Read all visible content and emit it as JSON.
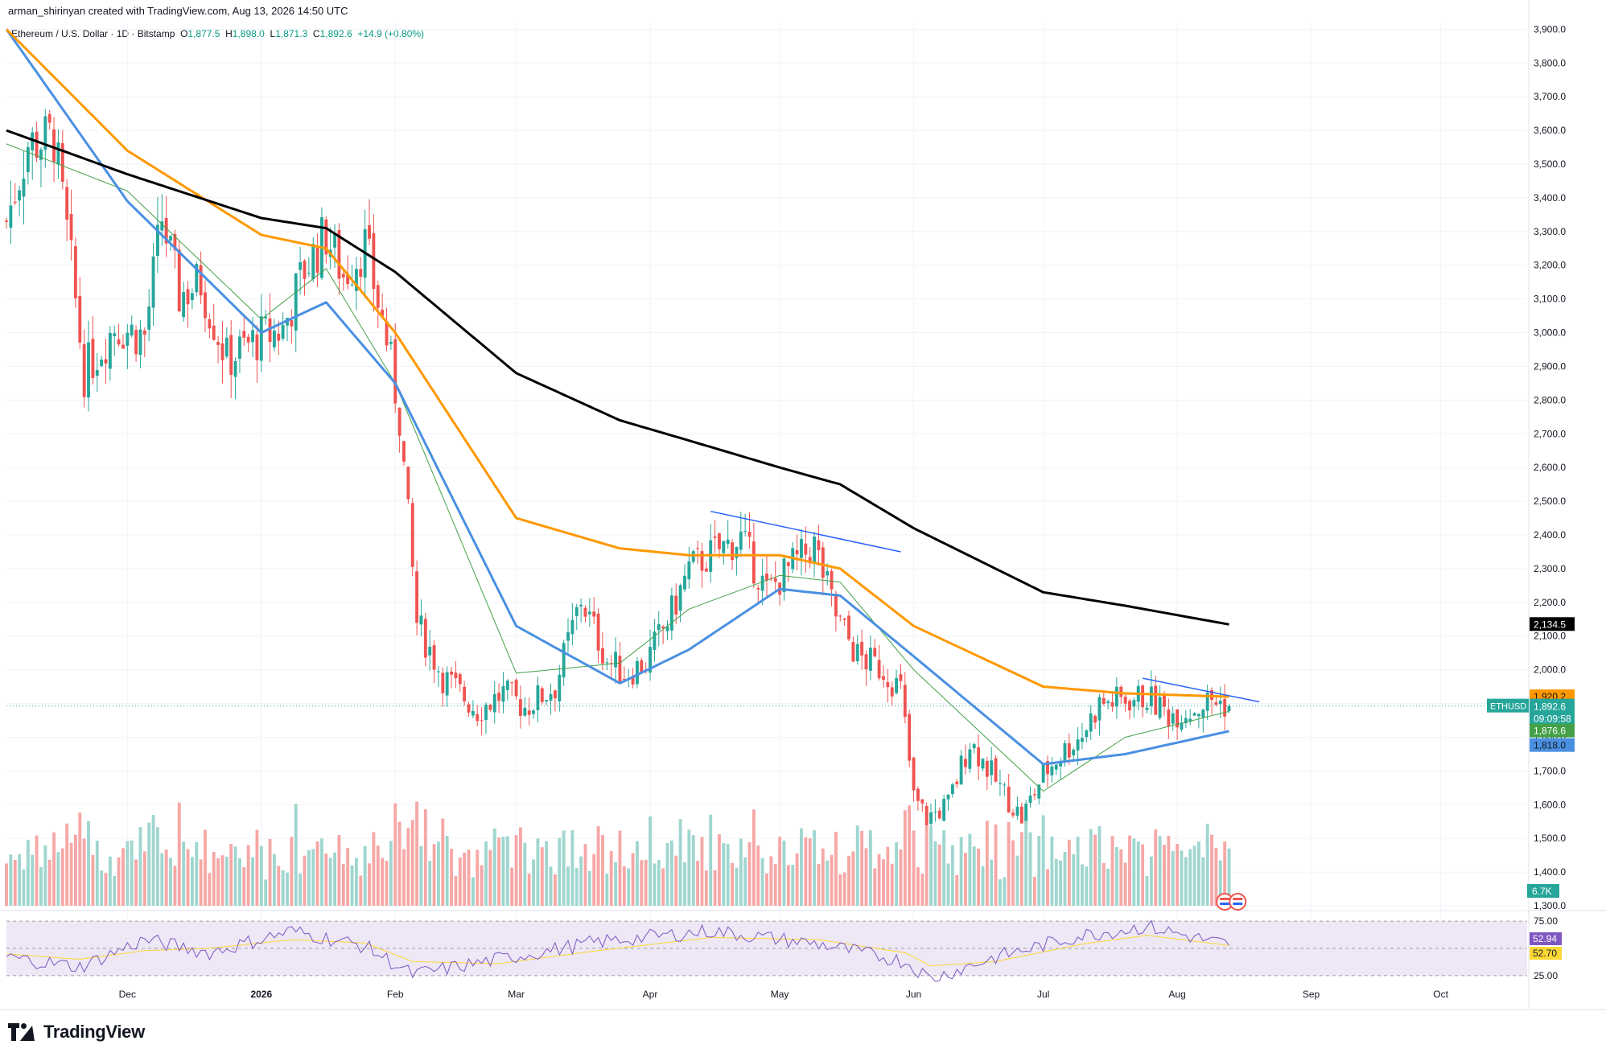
{
  "header": {
    "created_by": "arman_shirinyan created with TradingView.com, Aug 13, 2026 14:50 UTC"
  },
  "symbol": {
    "name": "Ethereum / U.S. Dollar · 1D · Bitstamp",
    "o_label": "O",
    "o": "1,877.5",
    "h_label": "H",
    "h": "1,898.0",
    "l_label": "L",
    "l": "1,871.3",
    "c_label": "C",
    "c": "1,892.6",
    "change": "+14.9 (+0.80%)"
  },
  "logo": {
    "text": "TradingView"
  },
  "colors": {
    "up": "#26a69a",
    "down": "#ef5350",
    "vol_up": "#9fd6cf",
    "vol_down": "#f6a7a6",
    "ma20": "#43a047",
    "ma50": "#4a90e2",
    "ma100": "#ff9800",
    "ma200": "#000000",
    "rsi": "#7e57c2",
    "rsi_ma": "#fdd835",
    "trendline": "#2962ff"
  },
  "chart_data": {
    "type": "candlestick",
    "symbol": "ETHUSD",
    "y_ticks": [
      "3,900.0",
      "3,800.0",
      "3,700.0",
      "3,600.0",
      "3,500.0",
      "3,400.0",
      "3,300.0",
      "3,200.0",
      "3,100.0",
      "3,000.0",
      "2,900.0",
      "2,800.0",
      "2,700.0",
      "2,600.0",
      "2,500.0",
      "2,400.0",
      "2,300.0",
      "2,200.0",
      "2,100.0",
      "2,000.0",
      "1,900.0",
      "1,800.0",
      "1,700.0",
      "1,600.0",
      "1,500.0",
      "1,400.0",
      "1,300.0"
    ],
    "y_tick_values": [
      3900,
      3800,
      3700,
      3600,
      3500,
      3400,
      3300,
      3200,
      3100,
      3000,
      2900,
      2800,
      2700,
      2600,
      2500,
      2400,
      2300,
      2200,
      2100,
      2000,
      1900,
      1800,
      1700,
      1600,
      1500,
      1400,
      1300
    ],
    "ylim": [
      1300,
      3920
    ],
    "x_labels": [
      {
        "text": "Dec",
        "date": "2025-12-01"
      },
      {
        "text": "2026",
        "date": "2026-01-01"
      },
      {
        "text": "Feb",
        "date": "2026-02-01"
      },
      {
        "text": "Mar",
        "date": "2026-03-01"
      },
      {
        "text": "Apr",
        "date": "2026-04-01"
      },
      {
        "text": "May",
        "date": "2026-05-01"
      },
      {
        "text": "Jun",
        "date": "2026-06-01"
      },
      {
        "text": "Jul",
        "date": "2026-07-01"
      },
      {
        "text": "Aug",
        "date": "2026-08-01"
      },
      {
        "text": "Sep",
        "date": "2026-09-01"
      },
      {
        "text": "Oct",
        "date": "2026-10-01"
      }
    ],
    "xlim": [
      "2025-11-03",
      "2026-10-21"
    ],
    "close_anchor_dates": [
      "2025-11-03",
      "2025-11-08",
      "2025-11-14",
      "2025-11-18",
      "2025-11-21",
      "2025-11-28",
      "2025-12-05",
      "2025-12-09",
      "2025-12-13",
      "2025-12-18",
      "2025-12-24",
      "2025-12-31",
      "2026-01-06",
      "2026-01-11",
      "2026-01-16",
      "2026-01-20",
      "2026-01-25",
      "2026-01-30",
      "2026-02-02",
      "2026-02-06",
      "2026-02-12",
      "2026-02-20",
      "2026-02-26",
      "2026-03-03",
      "2026-03-10",
      "2026-03-16",
      "2026-03-22",
      "2026-03-26",
      "2026-03-31",
      "2026-04-06",
      "2026-04-10",
      "2026-04-16",
      "2026-04-22",
      "2026-04-28",
      "2026-05-04",
      "2026-05-09",
      "2026-05-14",
      "2026-05-19",
      "2026-05-25",
      "2026-05-29",
      "2026-06-01",
      "2026-06-04",
      "2026-06-09",
      "2026-06-14",
      "2026-06-21",
      "2026-06-26",
      "2026-07-01",
      "2026-07-05",
      "2026-07-10",
      "2026-07-14",
      "2026-07-19",
      "2026-07-25",
      "2026-07-30",
      "2026-08-04",
      "2026-08-09",
      "2026-08-13"
    ],
    "close_anchor_values": [
      3330,
      3560,
      3580,
      3200,
      2880,
      3020,
      2990,
      3340,
      3110,
      3150,
      2920,
      2980,
      3010,
      3190,
      3290,
      3170,
      3260,
      2980,
      2750,
      2140,
      1980,
      1880,
      1930,
      1890,
      1950,
      2210,
      2030,
      1990,
      2020,
      2170,
      2300,
      2350,
      2390,
      2230,
      2310,
      2370,
      2160,
      2040,
      2000,
      1940,
      1620,
      1560,
      1600,
      1790,
      1650,
      1560,
      1690,
      1750,
      1810,
      1900,
      1910,
      1920,
      1870,
      1880,
      1910,
      1892.6
    ],
    "ma_anchor_dates": [
      "2025-11-03",
      "2025-12-01",
      "2026-01-01",
      "2026-01-16",
      "2026-02-01",
      "2026-03-01",
      "2026-03-25",
      "2026-04-10",
      "2026-05-01",
      "2026-05-15",
      "2026-06-01",
      "2026-07-01",
      "2026-07-20",
      "2026-08-13"
    ],
    "series": [
      {
        "name": "ma20",
        "values": [
          3560,
          3420,
          3040,
          3190,
          2850,
          1990,
          2020,
          2180,
          2280,
          2260,
          2000,
          1640,
          1800,
          1876.6
        ]
      },
      {
        "name": "ma50",
        "values": [
          3900,
          3390,
          3000,
          3090,
          2850,
          2130,
          1960,
          2060,
          2240,
          2220,
          2040,
          1720,
          1750,
          1818.0
        ]
      },
      {
        "name": "ma100",
        "values": [
          3900,
          3540,
          3290,
          3250,
          3000,
          2450,
          2360,
          2340,
          2340,
          2300,
          2130,
          1950,
          1930,
          1920.2
        ]
      },
      {
        "name": "ma200",
        "values": [
          3600,
          3470,
          3340,
          3310,
          3180,
          2880,
          2740,
          2680,
          2600,
          2550,
          2420,
          2230,
          2190,
          2134.5
        ]
      }
    ],
    "trendlines": [
      {
        "name": "upper-trendline-spring",
        "from": {
          "date": "2026-04-15",
          "value": 2470
        },
        "to": {
          "date": "2026-05-29",
          "value": 2350
        }
      },
      {
        "name": "upper-trendline-summer",
        "from": {
          "date": "2026-07-24",
          "value": 1975
        },
        "to": {
          "date": "2026-08-20",
          "value": 1905
        }
      }
    ],
    "price_labels": [
      {
        "name": "ma200-label",
        "value": 2134.5,
        "text": "2,134.5",
        "color": "#000000"
      },
      {
        "name": "ma100-label",
        "value": 1920.2,
        "text": "1,920.2",
        "color": "#ff9800"
      },
      {
        "name": "last-price-label",
        "value": 1892.6,
        "text": "1,892.6",
        "color": "#26a69a",
        "symbol": "ETHUSD",
        "countdown": "09:09:58"
      },
      {
        "name": "ma20-label",
        "value": 1876.6,
        "text": "1,876.6",
        "color": "#43a047"
      },
      {
        "name": "ma50-label",
        "value": 1818.0,
        "text": "1,818.0",
        "color": "#4a90e2"
      }
    ],
    "volume_label": "6.7K",
    "rsi": {
      "y_ticks": [
        "75.00",
        "25.00"
      ],
      "y_tick_values": [
        75,
        25
      ],
      "rsi_value": "52.94",
      "rsi_ma_value": "52.70",
      "rsi_anchor_dates": [
        "2025-11-03",
        "2025-11-20",
        "2025-12-05",
        "2025-12-20",
        "2026-01-08",
        "2026-01-25",
        "2026-02-05",
        "2026-02-25",
        "2026-03-20",
        "2026-04-15",
        "2026-05-10",
        "2026-05-30",
        "2026-06-05",
        "2026-06-20",
        "2026-07-10",
        "2026-07-25",
        "2026-08-13"
      ],
      "rsi_anchor_values": [
        42,
        33,
        58,
        46,
        66,
        52,
        26,
        40,
        56,
        66,
        54,
        38,
        22,
        42,
        62,
        70,
        52.94
      ],
      "rsi_ma_anchor_values": [
        45,
        40,
        48,
        50,
        58,
        55,
        38,
        36,
        48,
        60,
        58,
        46,
        34,
        38,
        54,
        62,
        52.7
      ]
    }
  }
}
